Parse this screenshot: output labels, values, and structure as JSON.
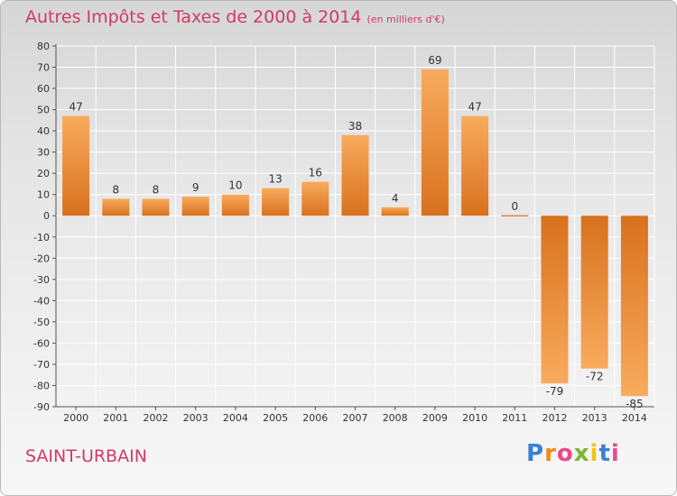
{
  "header": {
    "title": "Autres Impôts et Taxes de 2000 à 2014",
    "unit": "(en milliers d'€)"
  },
  "footer": {
    "commune": "SAINT-URBAIN",
    "logo_text": "Proxiti"
  },
  "colors": {
    "title": "#d13a63",
    "bar_light": "#f8a85a",
    "bar_dark": "#d9731f",
    "grid": "#ffffff"
  },
  "chart_data": {
    "type": "bar",
    "title": "Autres Impôts et Taxes de 2000 à 2014",
    "subtitle": "(en milliers d'€)",
    "categories": [
      "2000",
      "2001",
      "2002",
      "2003",
      "2004",
      "2005",
      "2006",
      "2007",
      "2008",
      "2009",
      "2010",
      "2011",
      "2012",
      "2013",
      "2014"
    ],
    "values": [
      47,
      8,
      8,
      9,
      10,
      13,
      16,
      38,
      4,
      69,
      47,
      0,
      -79,
      -72,
      -85
    ],
    "ylim": [
      -90,
      80
    ],
    "yticks": [
      80,
      70,
      60,
      50,
      40,
      30,
      20,
      10,
      0,
      -10,
      -20,
      -30,
      -40,
      -50,
      -60,
      -70,
      -80,
      -90
    ],
    "grid": true,
    "xlabel": "",
    "ylabel": ""
  }
}
